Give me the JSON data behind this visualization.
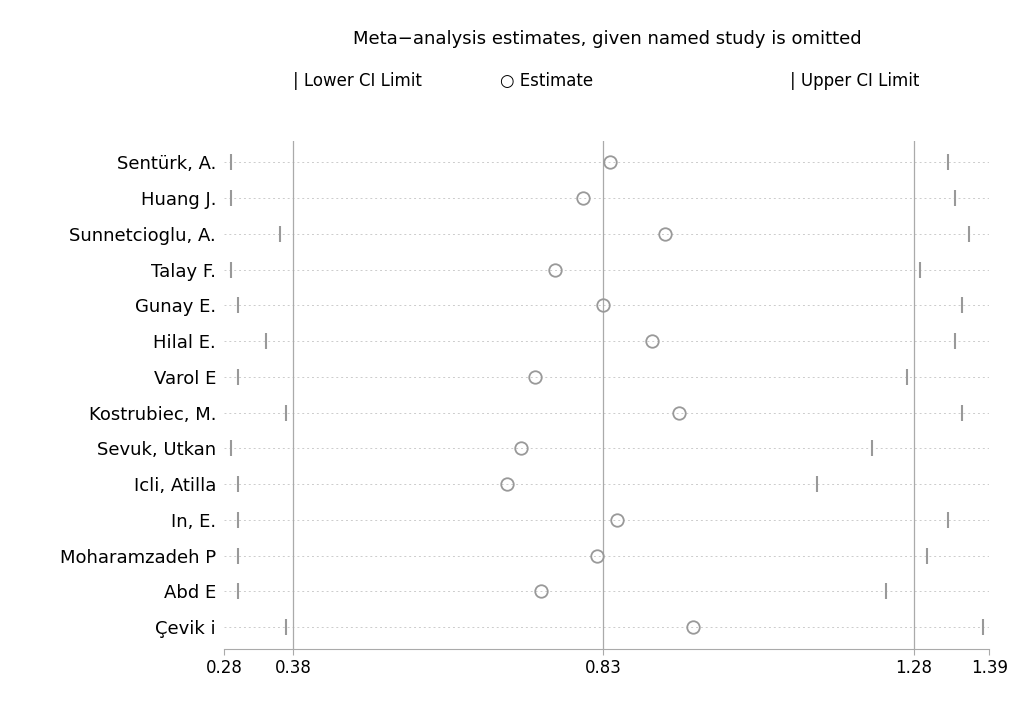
{
  "title": "Meta−analysis estimates, given named study is omitted",
  "studies": [
    "Sentürk, A.",
    "Huang J.",
    "Sunnetcioglu, A.",
    "Talay F.",
    "Gunay E.",
    "Hilal E.",
    "Varol E",
    "Kostrubiec, M.",
    "Sevuk, Utkan",
    "Icli, Atilla",
    "In, E.",
    "Moharamzadeh P",
    "Abd E",
    "Çevik i"
  ],
  "lower_ci": [
    0.29,
    0.29,
    0.36,
    0.29,
    0.3,
    0.34,
    0.3,
    0.37,
    0.29,
    0.3,
    0.3,
    0.3,
    0.3,
    0.37
  ],
  "estimate": [
    0.84,
    0.8,
    0.92,
    0.76,
    0.83,
    0.9,
    0.73,
    0.94,
    0.71,
    0.69,
    0.85,
    0.82,
    0.74,
    0.96
  ],
  "upper_ci": [
    1.33,
    1.34,
    1.36,
    1.29,
    1.35,
    1.34,
    1.27,
    1.35,
    1.22,
    1.14,
    1.33,
    1.3,
    1.24,
    1.38
  ],
  "xmin": 0.28,
  "xmax": 1.39,
  "xticks": [
    0.28,
    0.38,
    0.83,
    1.28,
    1.39
  ],
  "vlines": [
    0.38,
    0.83,
    1.28
  ],
  "bg_color": "#ffffff",
  "point_color": "#999999",
  "tick_line_color": "#999999",
  "vline_color": "#aaaaaa",
  "hline_color": "#cccccc",
  "title_fontsize": 13,
  "legend_fontsize": 12,
  "label_fontsize": 13,
  "xtick_fontsize": 12
}
